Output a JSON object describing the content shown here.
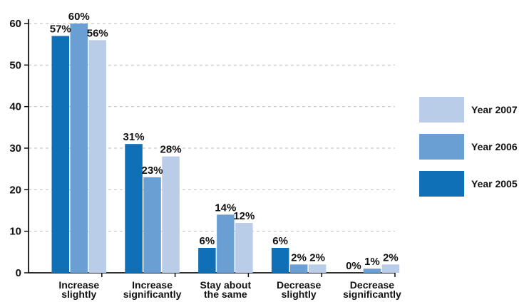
{
  "chart_data": {
    "type": "bar",
    "title": "",
    "xlabel": "",
    "ylabel": "",
    "categories": [
      [
        "Increase",
        "slightly"
      ],
      [
        "Increase",
        "significantly"
      ],
      [
        "Stay about",
        "the same"
      ],
      [
        "Decrease",
        "slightly"
      ],
      [
        "Decrease",
        "significantly"
      ]
    ],
    "series": [
      {
        "name": "Year 2005",
        "color": "#0f70b7",
        "values": [
          57,
          31,
          6,
          6,
          0
        ],
        "labels": [
          "57%",
          "31%",
          "6%",
          "6%",
          "0%"
        ]
      },
      {
        "name": "Year 2006",
        "color": "#6a9fd4",
        "values": [
          60,
          23,
          14,
          2,
          1
        ],
        "labels": [
          "60%",
          "23%",
          "14%",
          "2%",
          "1%"
        ]
      },
      {
        "name": "Year 2007",
        "color": "#b9cde9",
        "values": [
          56,
          28,
          12,
          2,
          2
        ],
        "labels": [
          "56%",
          "28%",
          "12%",
          "2%",
          "2%"
        ]
      }
    ],
    "ylim": [
      0,
      60
    ],
    "yticks": [
      0,
      10,
      20,
      30,
      40,
      50,
      60
    ],
    "grid": true,
    "legend_position": "right",
    "legend_order": [
      "Year 2007",
      "Year 2006",
      "Year 2005"
    ]
  }
}
